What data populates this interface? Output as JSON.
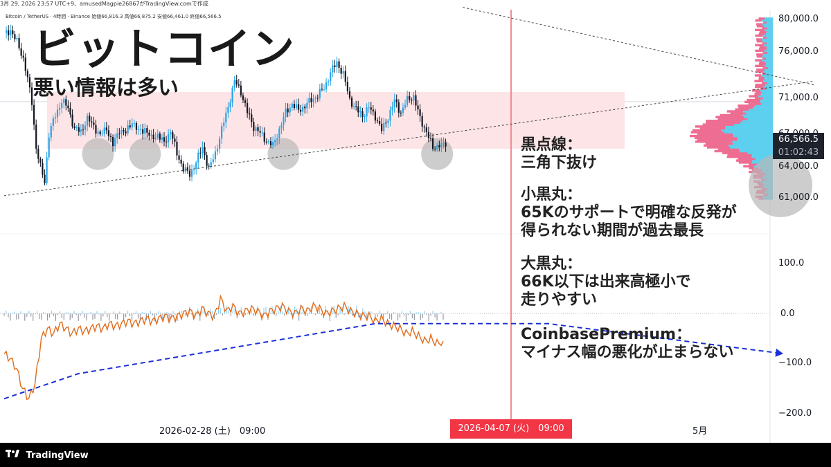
{
  "header": {
    "timestamp": "3月 29, 2026 23:57 UTC+9、amusedMagpie26867がTradingView.comで作成",
    "symbol_line": "Bitcoin / TetherUS · 4時間 · Binance 始値66,816.3 高値66,875.2 安値66,461.0 終値66,566.5"
  },
  "title": "ビットコイン",
  "subtitle": "悪い情報は多い",
  "annotations": [
    {
      "id": "dotted",
      "lines": [
        "黒点線：",
        "三角下抜け"
      ]
    },
    {
      "id": "small-circles",
      "lines": [
        "小黒丸：",
        "65Kのサポートで明確な反発が",
        "得られない期間が過去最長"
      ]
    },
    {
      "id": "big-circle",
      "lines": [
        "大黒丸：",
        "66K以下は出来高極小で",
        "走りやすい"
      ]
    },
    {
      "id": "premium",
      "lines": [
        "CoinbasePremium：",
        "マイナス幅の悪化が止まらない"
      ]
    }
  ],
  "price_tag": {
    "price": "66,566.5",
    "countdown": "01:02:43"
  },
  "date_badge": "2026-04-07 (火)　09:00",
  "x_labels": [
    "2026-02-28 (土)　09:00",
    "5月"
  ],
  "footer": {
    "brand": "TradingView"
  },
  "colors": {
    "up": "#26a5e8",
    "down": "#131722",
    "zone": "#fde4e6",
    "premium_line": "#e06b1a",
    "trend_arrow": "#1a2fd6",
    "vertical_line": "#f28b92",
    "vp_blue": "#5dd0ef",
    "vp_pink": "#ee6d92",
    "circle": "#b8b8b8"
  },
  "chart_data": [
    {
      "type": "candlestick",
      "name": "BTC/USDT 4h",
      "y_ticks": [
        "80,000.0",
        "76,000.0",
        "71,000.0",
        "67,000.0",
        "64,000.0",
        "61,000.0"
      ],
      "ylim": [
        59000,
        80500
      ],
      "last_price": 66566.5,
      "resistance_zone": [
        65700,
        71600
      ],
      "close_path": [
        [
          0,
          78300
        ],
        [
          3,
          78800
        ],
        [
          6,
          77500
        ],
        [
          9,
          75800
        ],
        [
          11,
          73600
        ],
        [
          13,
          71200
        ],
        [
          15,
          66400
        ],
        [
          17,
          64300
        ],
        [
          19,
          62800
        ],
        [
          21,
          67800
        ],
        [
          24,
          69800
        ],
        [
          27,
          71300
        ],
        [
          30,
          70600
        ],
        [
          33,
          68300
        ],
        [
          36,
          68100
        ],
        [
          39,
          69400
        ],
        [
          42,
          68700
        ],
        [
          45,
          67600
        ],
        [
          48,
          68500
        ],
        [
          51,
          66600
        ],
        [
          54,
          68300
        ],
        [
          57,
          67900
        ],
        [
          60,
          69200
        ],
        [
          63,
          68000
        ],
        [
          66,
          68400
        ],
        [
          69,
          67300
        ],
        [
          72,
          67800
        ],
        [
          75,
          66800
        ],
        [
          78,
          68200
        ],
        [
          81,
          65700
        ],
        [
          84,
          64200
        ],
        [
          87,
          63500
        ],
        [
          90,
          64900
        ],
        [
          93,
          66400
        ],
        [
          96,
          64100
        ],
        [
          99,
          65800
        ],
        [
          102,
          68300
        ],
        [
          105,
          70700
        ],
        [
          108,
          73400
        ],
        [
          111,
          72300
        ],
        [
          114,
          70100
        ],
        [
          117,
          68600
        ],
        [
          120,
          67900
        ],
        [
          123,
          67100
        ],
        [
          126,
          66600
        ],
        [
          129,
          68300
        ],
        [
          132,
          70100
        ],
        [
          135,
          71000
        ],
        [
          138,
          70300
        ],
        [
          141,
          70800
        ],
        [
          144,
          71400
        ],
        [
          147,
          71900
        ],
        [
          150,
          72700
        ],
        [
          153,
          74300
        ],
        [
          156,
          75400
        ],
        [
          159,
          74100
        ],
        [
          162,
          71500
        ],
        [
          165,
          70400
        ],
        [
          168,
          69800
        ],
        [
          171,
          70600
        ],
        [
          174,
          69700
        ],
        [
          177,
          68200
        ],
        [
          180,
          69600
        ],
        [
          183,
          71300
        ],
        [
          186,
          70100
        ],
        [
          189,
          71400
        ],
        [
          192,
          71800
        ],
        [
          195,
          69400
        ],
        [
          198,
          68100
        ],
        [
          201,
          66300
        ],
        [
          204,
          66700
        ],
        [
          207,
          66500
        ]
      ],
      "dotted_lines": [
        {
          "from": [
            0,
            61300
          ],
          "to": [
            380,
            73400
          ]
        },
        {
          "from": [
            215,
            81200
          ],
          "to": [
            380,
            73000
          ]
        }
      ],
      "circles": [
        {
          "size": "small",
          "at": [
            44,
            65700
          ]
        },
        {
          "size": "small",
          "at": [
            66,
            65700
          ]
        },
        {
          "size": "small",
          "at": [
            131,
            65700
          ]
        },
        {
          "size": "small",
          "at": [
            203,
            65700
          ]
        },
        {
          "size": "large",
          "at": [
            364,
            62400
          ]
        }
      ]
    },
    {
      "type": "line",
      "name": "CoinbasePremium",
      "y_ticks": [
        "100.0",
        "0.0",
        "−100.0",
        "−200.0"
      ],
      "ylim": [
        -210,
        110
      ],
      "values": [
        -80,
        -90,
        -110,
        -150,
        -170,
        -140,
        -50,
        -30,
        -40,
        -20,
        -30,
        -40,
        -30,
        -35,
        -30,
        -25,
        -30,
        -20,
        -25,
        -20,
        -15,
        -20,
        -15,
        -10,
        -15,
        -10,
        -5,
        -10,
        -5,
        0,
        5,
        -5,
        10,
        0,
        -5,
        30,
        5,
        15,
        0,
        5,
        10,
        5,
        -5,
        5,
        10,
        15,
        5,
        0,
        10,
        5,
        15,
        10,
        0,
        5,
        10,
        15,
        5,
        0,
        -5,
        -5,
        -15,
        -10,
        -20,
        -25,
        -30,
        -40,
        -35,
        -45,
        -55,
        -50,
        -60,
        -55
      ],
      "trend_arrow": [
        [
          -170,
          0
        ],
        [
          -120,
          12
        ],
        [
          -20,
          60
        ],
        [
          -20,
          88
        ],
        [
          -80,
          126
        ]
      ]
    },
    {
      "type": "volume-profile",
      "note_levels": [
        61000,
        80000
      ]
    }
  ]
}
